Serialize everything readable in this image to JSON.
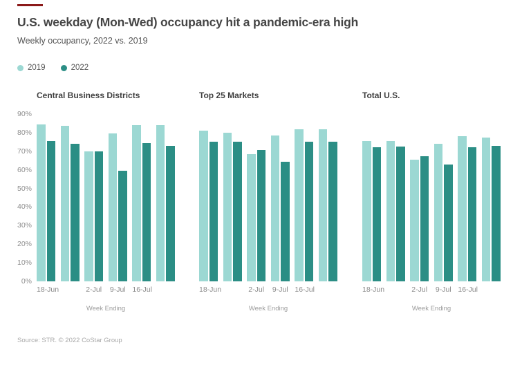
{
  "accent": {
    "color": "#8b1a1a"
  },
  "header": {
    "title": "U.S. weekday (Mon-Wed) occupancy hit a pandemic-era high",
    "subtitle": "Weekly occupancy, 2022 vs. 2019"
  },
  "legend": {
    "items": [
      {
        "label": "2019",
        "color": "#9cd8d3"
      },
      {
        "label": "2022",
        "color": "#2b8e85"
      }
    ]
  },
  "colors": {
    "2019": "#9cd8d3",
    "2022": "#2b8e85"
  },
  "axis": {
    "y_ticks": [
      "90%",
      "80%",
      "70%",
      "60%",
      "50%",
      "40%",
      "30%",
      "20%",
      "10%",
      "0%"
    ],
    "ymax": 90,
    "x_label": "Week Ending"
  },
  "chart_data": [
    {
      "type": "bar",
      "title": "Central Business Districts",
      "x_tick_labels": [
        "18-Jun",
        "",
        "2-Jul",
        "9-Jul",
        "16-Jul",
        ""
      ],
      "series": [
        {
          "name": "2019",
          "values": [
            84.5,
            83.5,
            70,
            79.5,
            84,
            84
          ]
        },
        {
          "name": "2022",
          "values": [
            75.5,
            74,
            70,
            59.5,
            74.5,
            73
          ]
        }
      ],
      "ylim": [
        0,
        90
      ],
      "xlabel": "Week Ending",
      "ylabel": "",
      "grid": false,
      "legend_position": "top-left"
    },
    {
      "type": "bar",
      "title": "Top 25 Markets",
      "x_tick_labels": [
        "18-Jun",
        "",
        "2-Jul",
        "9-Jul",
        "16-Jul",
        ""
      ],
      "series": [
        {
          "name": "2019",
          "values": [
            81,
            80,
            68.5,
            78.5,
            82,
            82
          ]
        },
        {
          "name": "2022",
          "values": [
            75,
            75,
            70.5,
            64.5,
            75,
            75
          ]
        }
      ],
      "ylim": [
        0,
        90
      ],
      "xlabel": "Week Ending",
      "ylabel": "",
      "grid": false,
      "legend_position": "top-left"
    },
    {
      "type": "bar",
      "title": "Total U.S.",
      "x_tick_labels": [
        "18-Jun",
        "",
        "2-Jul",
        "9-Jul",
        "16-Jul",
        ""
      ],
      "series": [
        {
          "name": "2019",
          "values": [
            75.5,
            75.5,
            65.5,
            74,
            78,
            77.5
          ]
        },
        {
          "name": "2022",
          "values": [
            72,
            72.5,
            67.5,
            63,
            72,
            73
          ]
        }
      ],
      "ylim": [
        0,
        90
      ],
      "xlabel": "Week Ending",
      "ylabel": "",
      "grid": false,
      "legend_position": "top-left"
    }
  ],
  "footer": {
    "source": "Source: STR. © 2022 CoStar Group"
  }
}
